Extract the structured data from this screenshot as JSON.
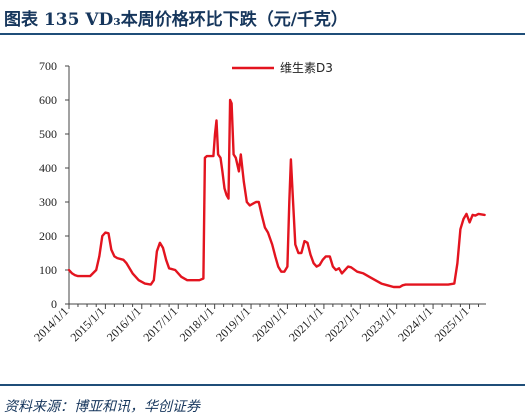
{
  "header": {
    "title": "图表 135  VD₃本周价格环比下跌（元/千克）",
    "source": "资料来源：博亚和讯，华创证券"
  },
  "chart_data": {
    "type": "line",
    "title": "",
    "xlabel": "",
    "ylabel": "",
    "ylim": [
      0,
      700
    ],
    "y_ticks": [
      0,
      100,
      200,
      300,
      400,
      500,
      600,
      700
    ],
    "x_tick_labels": [
      "2014/1/1",
      "2015/1/1",
      "2016/1/1",
      "2017/1/1",
      "2018/1/1",
      "2019/1/1",
      "2020/1/1",
      "2021/1/1",
      "2022/1/1",
      "2023/1/1",
      "2024/1/1",
      "2025/1/1"
    ],
    "legend_position": "top-center",
    "grid": false,
    "series": [
      {
        "name": "维生素D3",
        "color": "#e3141f",
        "points": [
          [
            "2014-01-01",
            100
          ],
          [
            "2014-02-01",
            90
          ],
          [
            "2014-03-01",
            85
          ],
          [
            "2014-04-01",
            82
          ],
          [
            "2014-06-01",
            82
          ],
          [
            "2014-08-01",
            82
          ],
          [
            "2014-10-01",
            100
          ],
          [
            "2014-11-01",
            140
          ],
          [
            "2014-12-01",
            200
          ],
          [
            "2015-01-01",
            210
          ],
          [
            "2015-02-01",
            208
          ],
          [
            "2015-03-01",
            160
          ],
          [
            "2015-04-01",
            140
          ],
          [
            "2015-05-01",
            135
          ],
          [
            "2015-07-01",
            130
          ],
          [
            "2015-08-01",
            120
          ],
          [
            "2015-10-01",
            90
          ],
          [
            "2015-12-01",
            70
          ],
          [
            "2016-02-01",
            60
          ],
          [
            "2016-04-01",
            57
          ],
          [
            "2016-05-01",
            70
          ],
          [
            "2016-06-01",
            155
          ],
          [
            "2016-07-01",
            180
          ],
          [
            "2016-08-01",
            165
          ],
          [
            "2016-09-01",
            130
          ],
          [
            "2016-10-01",
            105
          ],
          [
            "2016-12-01",
            100
          ],
          [
            "2017-02-01",
            80
          ],
          [
            "2017-04-01",
            70
          ],
          [
            "2017-06-01",
            70
          ],
          [
            "2017-08-01",
            70
          ],
          [
            "2017-09-10",
            75
          ],
          [
            "2017-09-25",
            430
          ],
          [
            "2017-10-15",
            435
          ],
          [
            "2017-12-01",
            435
          ],
          [
            "2017-12-20",
            435
          ],
          [
            "2018-01-05",
            500
          ],
          [
            "2018-01-20",
            540
          ],
          [
            "2018-02-05",
            440
          ],
          [
            "2018-03-01",
            430
          ],
          [
            "2018-03-20",
            390
          ],
          [
            "2018-04-10",
            340
          ],
          [
            "2018-05-01",
            320
          ],
          [
            "2018-05-20",
            310
          ],
          [
            "2018-06-05",
            600
          ],
          [
            "2018-06-20",
            590
          ],
          [
            "2018-07-10",
            440
          ],
          [
            "2018-08-01",
            430
          ],
          [
            "2018-09-01",
            390
          ],
          [
            "2018-09-20",
            440
          ],
          [
            "2018-10-20",
            360
          ],
          [
            "2018-11-20",
            300
          ],
          [
            "2018-12-20",
            290
          ],
          [
            "2019-01-20",
            295
          ],
          [
            "2019-02-20",
            300
          ],
          [
            "2019-03-20",
            300
          ],
          [
            "2019-04-20",
            260
          ],
          [
            "2019-05-20",
            225
          ],
          [
            "2019-06-20",
            210
          ],
          [
            "2019-08-01",
            175
          ],
          [
            "2019-09-01",
            140
          ],
          [
            "2019-10-01",
            110
          ],
          [
            "2019-11-01",
            95
          ],
          [
            "2019-12-01",
            95
          ],
          [
            "2020-01-01",
            110
          ],
          [
            "2020-01-20",
            300
          ],
          [
            "2020-02-05",
            425
          ],
          [
            "2020-02-25",
            310
          ],
          [
            "2020-03-20",
            175
          ],
          [
            "2020-04-20",
            150
          ],
          [
            "2020-05-20",
            150
          ],
          [
            "2020-06-20",
            185
          ],
          [
            "2020-07-20",
            180
          ],
          [
            "2020-08-20",
            145
          ],
          [
            "2020-09-20",
            120
          ],
          [
            "2020-10-20",
            110
          ],
          [
            "2020-11-20",
            115
          ],
          [
            "2020-12-20",
            130
          ],
          [
            "2021-01-20",
            140
          ],
          [
            "2021-03-01",
            140
          ],
          [
            "2021-04-01",
            110
          ],
          [
            "2021-05-01",
            100
          ],
          [
            "2021-06-01",
            105
          ],
          [
            "2021-07-01",
            90
          ],
          [
            "2021-09-01",
            110
          ],
          [
            "2021-10-01",
            108
          ],
          [
            "2021-12-01",
            95
          ],
          [
            "2022-02-01",
            90
          ],
          [
            "2022-04-01",
            80
          ],
          [
            "2022-06-01",
            70
          ],
          [
            "2022-08-01",
            60
          ],
          [
            "2022-10-01",
            55
          ],
          [
            "2022-12-01",
            50
          ],
          [
            "2023-02-01",
            50
          ],
          [
            "2023-03-01",
            55
          ],
          [
            "2023-04-01",
            57
          ],
          [
            "2023-06-01",
            57
          ],
          [
            "2023-09-01",
            57
          ],
          [
            "2023-12-01",
            57
          ],
          [
            "2024-03-01",
            57
          ],
          [
            "2024-06-01",
            57
          ],
          [
            "2024-08-01",
            60
          ],
          [
            "2024-09-01",
            120
          ],
          [
            "2024-10-01",
            220
          ],
          [
            "2024-11-01",
            250
          ],
          [
            "2024-12-01",
            265
          ],
          [
            "2025-01-01",
            240
          ],
          [
            "2025-02-01",
            262
          ],
          [
            "2025-03-01",
            260
          ],
          [
            "2025-04-01",
            265
          ],
          [
            "2025-06-01",
            262
          ]
        ]
      }
    ]
  }
}
